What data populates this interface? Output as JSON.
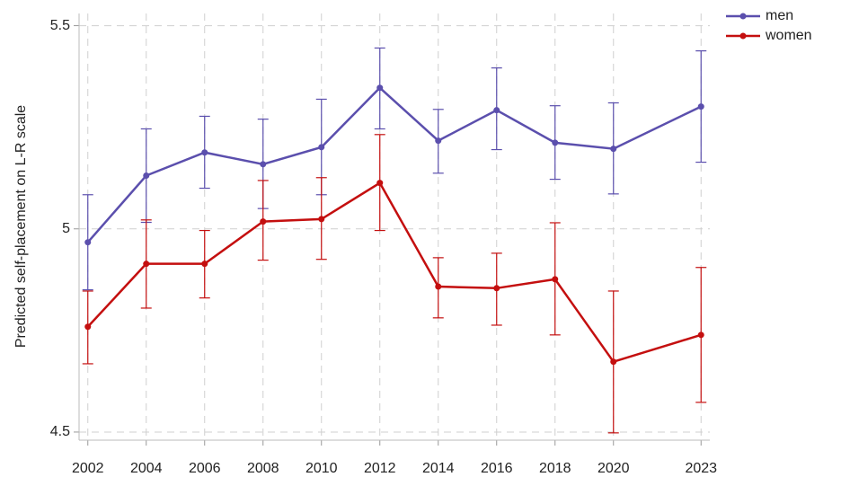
{
  "chart_data": {
    "type": "line",
    "y_label": "Predicted self-placement on L-R scale",
    "x": [
      2002,
      2004,
      2006,
      2008,
      2010,
      2012,
      2014,
      2016,
      2018,
      2020,
      2023
    ],
    "xlim": [
      2001.7,
      2023.3
    ],
    "xticks": [
      2002,
      2004,
      2006,
      2008,
      2010,
      2012,
      2014,
      2016,
      2018,
      2020,
      2023
    ],
    "ylim": [
      4.48,
      5.53
    ],
    "yticks": [
      4.5,
      5,
      5.5
    ],
    "grid": true,
    "legend": "top right outside",
    "series": [
      {
        "name": "men",
        "color": "#5b4fad",
        "values": [
          4.967,
          5.131,
          5.188,
          5.159,
          5.201,
          5.347,
          5.217,
          5.292,
          5.212,
          5.197,
          5.301
        ],
        "lower": [
          4.85,
          5.016,
          5.1,
          5.05,
          5.084,
          5.246,
          5.137,
          5.195,
          5.122,
          5.086,
          5.164
        ],
        "upper": [
          5.084,
          5.246,
          5.277,
          5.27,
          5.319,
          5.445,
          5.294,
          5.396,
          5.303,
          5.31,
          5.438
        ]
      },
      {
        "name": "women",
        "color": "#c40f0f",
        "values": [
          4.759,
          4.914,
          4.914,
          5.018,
          5.024,
          5.113,
          4.858,
          4.854,
          4.876,
          4.673,
          4.739
        ],
        "lower": [
          4.668,
          4.805,
          4.83,
          4.923,
          4.925,
          4.996,
          4.781,
          4.763,
          4.739,
          4.498,
          4.573
        ],
        "upper": [
          4.847,
          5.022,
          4.996,
          5.119,
          5.126,
          5.232,
          4.929,
          4.94,
          5.015,
          4.847,
          4.905
        ]
      }
    ]
  }
}
